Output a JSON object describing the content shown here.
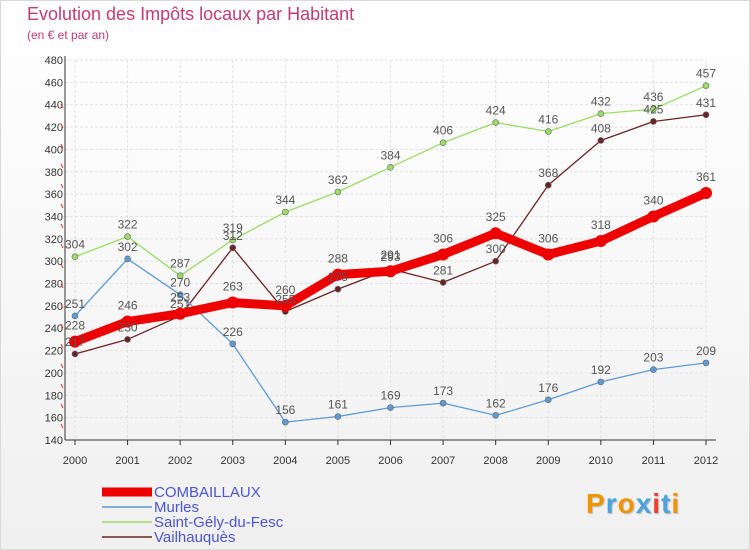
{
  "header": {
    "title": "Evolution des Impôts locaux par Habitant",
    "subtitle": "(en € et par an)"
  },
  "logo": {
    "text": "Proxiti"
  },
  "chart_data": {
    "type": "line",
    "title": "Evolution des Impôts locaux par Habitant",
    "subtitle": "(en € et par an)",
    "x": [
      "2000",
      "2001",
      "2002",
      "2003",
      "2004",
      "2005",
      "2006",
      "2007",
      "2008",
      "2009",
      "2010",
      "2011",
      "2012"
    ],
    "ylim": [
      140,
      480
    ],
    "yticks": [
      140,
      160,
      180,
      200,
      220,
      240,
      260,
      280,
      300,
      320,
      340,
      360,
      380,
      400,
      420,
      440,
      460,
      480
    ],
    "grid": true,
    "legend": "bottom-left",
    "series": [
      {
        "name": "COMBAILLAUX",
        "color": "#ee0000",
        "values": [
          228,
          246,
          253,
          263,
          260,
          288,
          291,
          306,
          325,
          306,
          318,
          340,
          361
        ]
      },
      {
        "name": "Murles",
        "color": "#5d9bd5",
        "values": [
          251,
          302,
          270,
          226,
          156,
          161,
          169,
          173,
          162,
          176,
          192,
          203,
          209
        ]
      },
      {
        "name": "Saint-Gély-du-Fesc",
        "color": "#99dd66",
        "values": [
          304,
          322,
          287,
          319,
          344,
          362,
          384,
          406,
          424,
          416,
          432,
          436,
          457
        ]
      },
      {
        "name": "Vailhauquès",
        "color": "#6b2424",
        "values": [
          217,
          230,
          251,
          312,
          255,
          275,
          293,
          281,
          300,
          368,
          408,
          425,
          431
        ]
      }
    ]
  }
}
